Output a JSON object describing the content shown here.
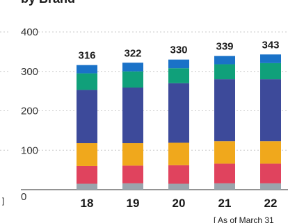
{
  "chart_data": {
    "type": "bar",
    "stacked": true,
    "title": "by Brand",
    "categories": [
      "18",
      "19",
      "20",
      "21",
      "22"
    ],
    "totals": [
      "316",
      "322",
      "330",
      "339",
      "343"
    ],
    "ylim": [
      0,
      400
    ],
    "yticks": [
      "0",
      "100",
      "200",
      "300",
      "400"
    ],
    "grid": true,
    "series": [
      {
        "color": "#9aa5ad",
        "values": [
          15,
          16,
          15,
          16,
          16
        ]
      },
      {
        "color": "#e0435e",
        "values": [
          45,
          45,
          47,
          50,
          50
        ]
      },
      {
        "color": "#f0a81c",
        "values": [
          58,
          57,
          57,
          57,
          57
        ]
      },
      {
        "color": "#3d4a9a",
        "values": [
          135,
          141,
          151,
          157,
          157
        ]
      },
      {
        "color": "#10a07a",
        "values": [
          42,
          41,
          38,
          38,
          41
        ]
      },
      {
        "color": "#1a72c8",
        "values": [
          21,
          22,
          22,
          21,
          22
        ]
      }
    ],
    "note": "[ As of March 31"
  },
  "decor": {
    "left_edge_mark": "]"
  }
}
